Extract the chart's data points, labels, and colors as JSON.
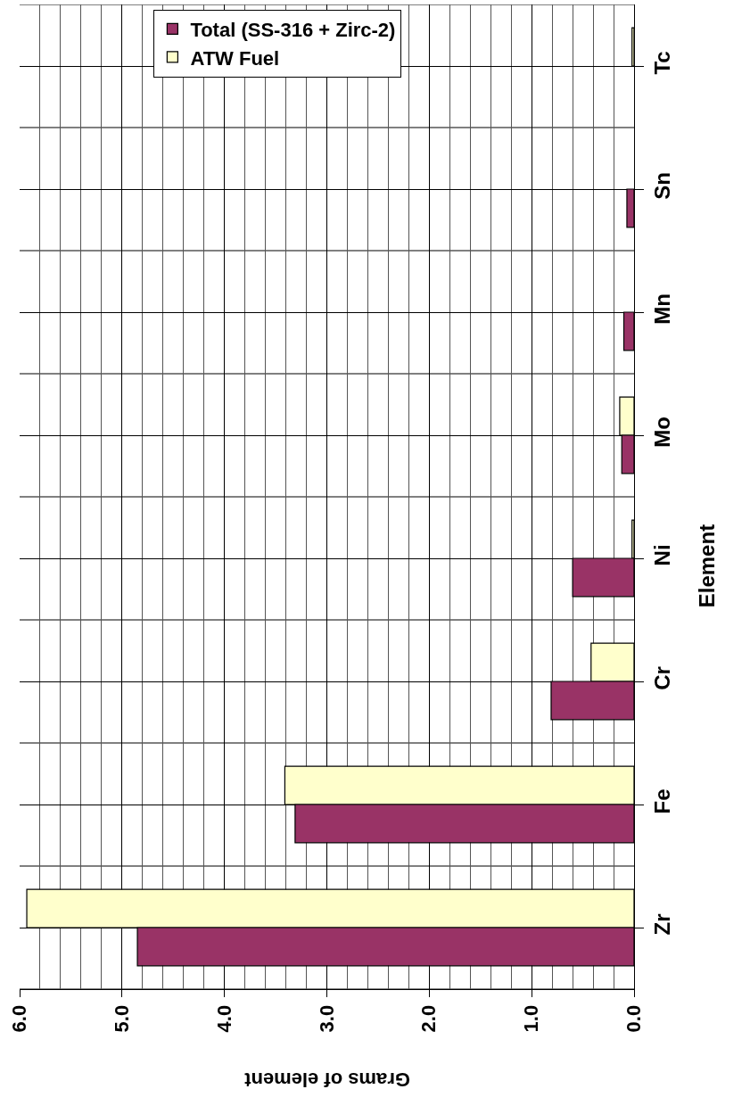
{
  "chart_data": {
    "type": "bar",
    "orientation": "horizontal",
    "xlabel": "Grams of element",
    "ylabel": "Element",
    "categories": [
      "Tc",
      "Sn",
      "Mn",
      "Mo",
      "Ni",
      "Cr",
      "Fe",
      "Zr"
    ],
    "series": [
      {
        "name": "Total (SS-316 + Zirc-2)",
        "color": "#993366",
        "values": [
          null,
          0.07,
          0.1,
          0.12,
          0.6,
          0.81,
          3.31,
          4.85
        ]
      },
      {
        "name": "ATW Fuel",
        "color": "#ffffcc",
        "values": [
          0.02,
          null,
          null,
          0.14,
          0.02,
          0.42,
          3.41,
          5.93
        ]
      }
    ],
    "xlim": [
      6.0,
      0.0
    ],
    "xticks": [
      {
        "value": 6,
        "label": "6.0"
      },
      {
        "value": 5,
        "label": "5.0"
      },
      {
        "value": 4,
        "label": "4.0"
      },
      {
        "value": 3,
        "label": "3.0"
      },
      {
        "value": 2,
        "label": "2.0"
      },
      {
        "value": 1,
        "label": "1.0"
      },
      {
        "value": 0,
        "label": "0.0"
      }
    ],
    "grid": true,
    "legend": "top"
  }
}
